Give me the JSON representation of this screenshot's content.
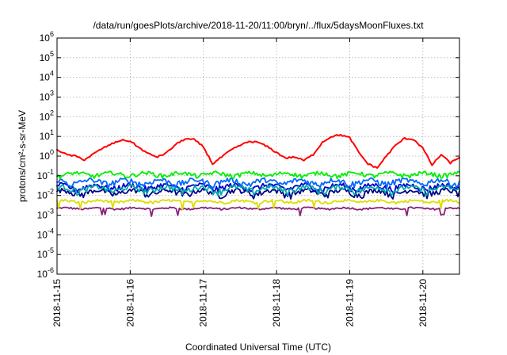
{
  "chart_data": {
    "type": "line",
    "title": "/data/run/goesPlots/archive/2018-11-20/11:00/bryn/../flux/5daysMoonFluxes.txt",
    "xlabel": "Coordinated Universal Time (UTC)",
    "ylabel": "protons/cm²-s-sr-MeV",
    "yscale": "log",
    "ylim": [
      1e-06,
      1000000.0
    ],
    "xlim": [
      "2018-11-15 00:00",
      "2018-11-20 12:00"
    ],
    "grid": true,
    "x_ticks": [
      "2018-11-15",
      "2018-11-16",
      "2018-11-17",
      "2018-11-18",
      "2018-11-19",
      "2018-11-20"
    ],
    "y_ticks": [
      {
        "value": 1e-06,
        "base": "10",
        "exp": "-6"
      },
      {
        "value": 1e-05,
        "base": "10",
        "exp": "-5"
      },
      {
        "value": 0.0001,
        "base": "10",
        "exp": "-4"
      },
      {
        "value": 0.001,
        "base": "10",
        "exp": "-3"
      },
      {
        "value": 0.01,
        "base": "10",
        "exp": "-2"
      },
      {
        "value": 0.1,
        "base": "10",
        "exp": "-1"
      },
      {
        "value": 1,
        "base": "10",
        "exp": "0"
      },
      {
        "value": 10,
        "base": "10",
        "exp": "1"
      },
      {
        "value": 100,
        "base": "10",
        "exp": "2"
      },
      {
        "value": 1000,
        "base": "10",
        "exp": "3"
      },
      {
        "value": 10000,
        "base": "10",
        "exp": "4"
      },
      {
        "value": 100000,
        "base": "10",
        "exp": "5"
      },
      {
        "value": 1000000,
        "base": "10",
        "exp": "6"
      }
    ],
    "series": [
      {
        "color": "#ff0000",
        "values": [
          [
            "2018-11-15 00:00",
            2.2
          ],
          [
            "2018-11-15 03:00",
            1.2
          ],
          [
            "2018-11-15 06:00",
            1.0
          ],
          [
            "2018-11-15 09:00",
            0.65
          ],
          [
            "2018-11-15 12:00",
            1.3
          ],
          [
            "2018-11-15 15:00",
            2.5
          ],
          [
            "2018-11-15 18:00",
            4.2
          ],
          [
            "2018-11-15 21:00",
            6.5
          ],
          [
            "2018-11-16 00:00",
            5.8
          ],
          [
            "2018-11-16 03:00",
            2.6
          ],
          [
            "2018-11-16 06:00",
            1.3
          ],
          [
            "2018-11-16 09:00",
            0.9
          ],
          [
            "2018-11-16 12:00",
            1.5
          ],
          [
            "2018-11-16 15:00",
            4.0
          ],
          [
            "2018-11-16 18:00",
            7.5
          ],
          [
            "2018-11-16 21:00",
            6.8
          ],
          [
            "2018-11-17 00:00",
            3.0
          ],
          [
            "2018-11-17 03:00",
            0.4
          ],
          [
            "2018-11-17 06:00",
            0.9
          ],
          [
            "2018-11-17 09:00",
            2.0
          ],
          [
            "2018-11-17 12:00",
            3.5
          ],
          [
            "2018-11-17 15:00",
            5.5
          ],
          [
            "2018-11-17 18:00",
            5.0
          ],
          [
            "2018-11-17 21:00",
            3.0
          ],
          [
            "2018-11-18 00:00",
            1.5
          ],
          [
            "2018-11-18 03:00",
            0.8
          ],
          [
            "2018-11-18 06:00",
            0.9
          ],
          [
            "2018-11-18 09:00",
            0.6
          ],
          [
            "2018-11-18 12:00",
            1.2
          ],
          [
            "2018-11-18 15:00",
            5.0
          ],
          [
            "2018-11-18 18:00",
            10.0
          ],
          [
            "2018-11-18 21:00",
            12.0
          ],
          [
            "2018-11-19 00:00",
            8.5
          ],
          [
            "2018-11-19 03:00",
            1.5
          ],
          [
            "2018-11-19 06:00",
            0.4
          ],
          [
            "2018-11-19 09:00",
            0.25
          ],
          [
            "2018-11-19 12:00",
            1.0
          ],
          [
            "2018-11-19 15:00",
            3.5
          ],
          [
            "2018-11-19 18:00",
            8.0
          ],
          [
            "2018-11-19 21:00",
            7.0
          ],
          [
            "2018-11-20 00:00",
            2.5
          ],
          [
            "2018-11-20 03:00",
            0.35
          ],
          [
            "2018-11-20 06:00",
            1.2
          ],
          [
            "2018-11-20 09:00",
            0.45
          ],
          [
            "2018-11-20 12:00",
            0.85
          ]
        ]
      },
      {
        "color": "#00ee00",
        "base": 0.12,
        "amp": 0.18
      },
      {
        "color": "#0066ff",
        "base": 0.05,
        "amp": 0.25
      },
      {
        "color": "#00aaaa",
        "base": 0.022,
        "amp": 0.25
      },
      {
        "color": "#0000cc",
        "base": 0.028,
        "amp": 0.25
      },
      {
        "color": "#000088",
        "base": 0.015,
        "amp": 0.25
      },
      {
        "color": "#dddd00",
        "base": 0.005,
        "amp": 0.12
      },
      {
        "color": "#882277",
        "base": 0.0022,
        "amp": 0.08
      }
    ]
  }
}
